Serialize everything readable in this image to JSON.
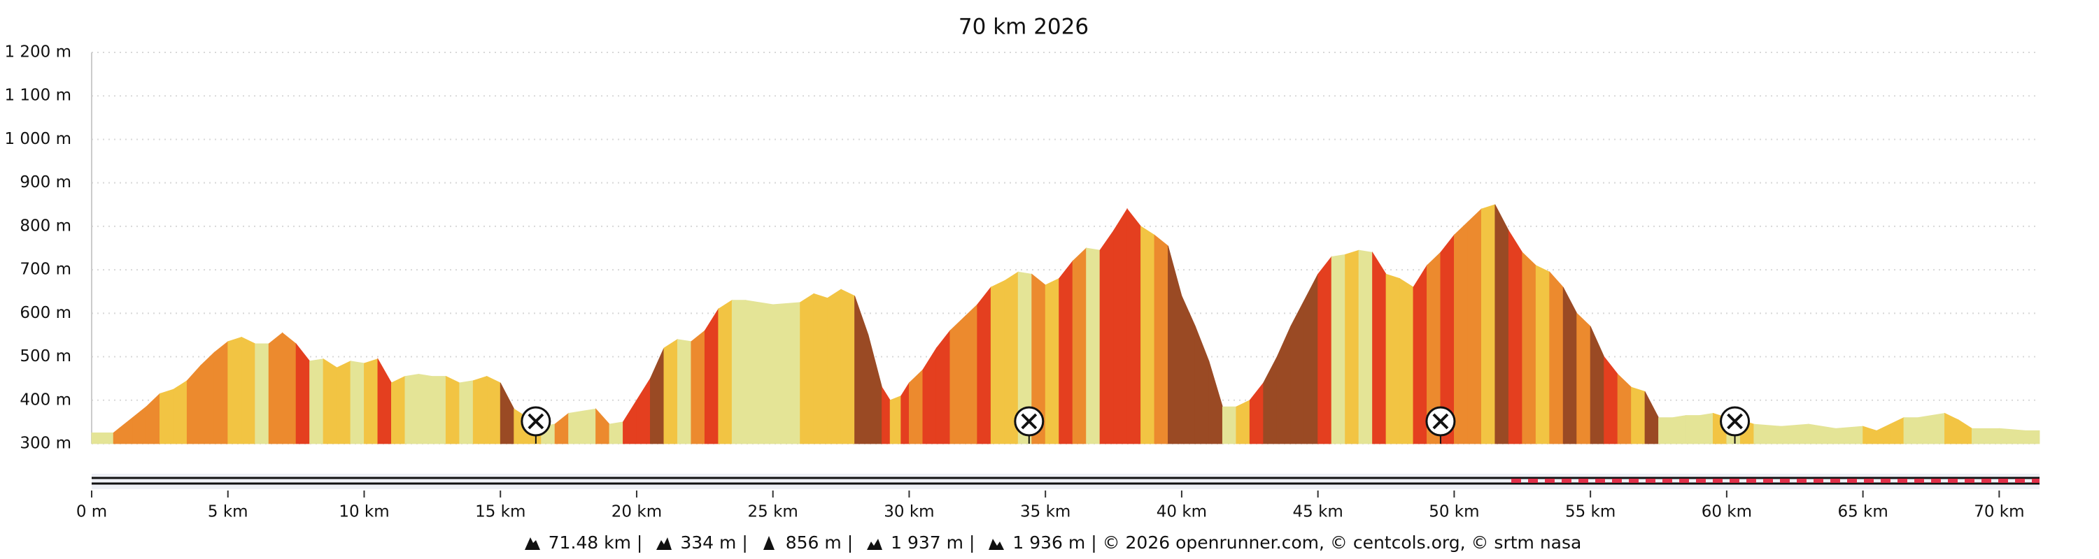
{
  "chart_data": {
    "type": "elevation",
    "title": "70 km 2026",
    "x": [
      0,
      0.8,
      1.0,
      1.5,
      2.0,
      2.5,
      3.0,
      3.5,
      4.0,
      4.5,
      5.0,
      5.5,
      6.0,
      6.5,
      7.0,
      7.5,
      8.0,
      8.5,
      9.0,
      9.5,
      10.0,
      10.5,
      11.0,
      11.5,
      12.0,
      12.5,
      13.0,
      13.5,
      14.0,
      14.5,
      15.0,
      15.5,
      16.0,
      16.5,
      17.0,
      17.5,
      18.0,
      18.5,
      19.0,
      19.5,
      20.0,
      20.5,
      21.0,
      21.5,
      22.0,
      22.5,
      23.0,
      23.5,
      24.0,
      25.0,
      26.0,
      26.5,
      27.0,
      27.5,
      28.0,
      28.5,
      29.0,
      29.3,
      29.7,
      30.0,
      30.5,
      31.0,
      31.5,
      32.0,
      32.5,
      33.0,
      33.5,
      34.0,
      34.5,
      35.0,
      35.5,
      36.0,
      36.5,
      37.0,
      37.5,
      38.0,
      38.5,
      39.0,
      39.5,
      40.0,
      40.5,
      41.0,
      41.5,
      42.0,
      42.5,
      43.0,
      43.5,
      44.0,
      44.5,
      45.0,
      45.5,
      46.0,
      46.5,
      47.0,
      47.5,
      48.0,
      48.5,
      49.0,
      49.5,
      50.0,
      50.5,
      51.0,
      51.5,
      52.0,
      52.5,
      53.0,
      53.5,
      54.0,
      54.5,
      55.0,
      55.5,
      56.0,
      56.5,
      57.0,
      57.5,
      58.0,
      58.5,
      59.0,
      59.5,
      60.0,
      60.5,
      61.0,
      62.0,
      63.0,
      64.0,
      65.0,
      65.5,
      66.0,
      66.5,
      67.0,
      68.0,
      68.5,
      69.0,
      70.0,
      71.0,
      71.48
    ],
    "values": [
      325,
      325,
      335,
      360,
      385,
      415,
      425,
      445,
      480,
      510,
      535,
      545,
      530,
      530,
      555,
      530,
      490,
      495,
      475,
      490,
      485,
      495,
      440,
      455,
      460,
      455,
      455,
      440,
      445,
      455,
      440,
      380,
      360,
      340,
      345,
      370,
      375,
      380,
      345,
      350,
      400,
      450,
      520,
      540,
      535,
      560,
      610,
      630,
      630,
      620,
      625,
      645,
      635,
      655,
      640,
      550,
      430,
      400,
      410,
      440,
      470,
      520,
      560,
      590,
      620,
      660,
      675,
      695,
      690,
      665,
      680,
      720,
      750,
      745,
      790,
      840,
      800,
      780,
      755,
      640,
      570,
      490,
      385,
      385,
      400,
      440,
      500,
      570,
      630,
      690,
      730,
      735,
      745,
      740,
      690,
      680,
      660,
      710,
      740,
      780,
      810,
      840,
      850,
      790,
      740,
      710,
      695,
      660,
      600,
      570,
      500,
      460,
      430,
      420,
      360,
      360,
      365,
      365,
      370,
      360,
      355,
      345,
      340,
      345,
      335,
      340,
      330,
      345,
      360,
      360,
      370,
      355,
      335,
      335,
      330,
      330
    ],
    "slope_colors": [
      "#e4e496",
      "#f2c443",
      "#ec8a2e",
      "#e43f1f",
      "#9a4a24"
    ],
    "xlim": [
      0,
      71.48
    ],
    "ylim": [
      300,
      1200
    ],
    "yticks": [
      {
        "value": 300,
        "label": "300 m"
      },
      {
        "value": 400,
        "label": "400 m"
      },
      {
        "value": 500,
        "label": "500 m"
      },
      {
        "value": 600,
        "label": "600 m"
      },
      {
        "value": 700,
        "label": "700 m"
      },
      {
        "value": 800,
        "label": "800 m"
      },
      {
        "value": 900,
        "label": "900 m"
      },
      {
        "value": 1000,
        "label": "1 000 m"
      },
      {
        "value": 1100,
        "label": "1 100 m"
      },
      {
        "value": 1200,
        "label": "1 200 m"
      }
    ],
    "xticks": [
      {
        "value": 0,
        "label": "0 m"
      },
      {
        "value": 5,
        "label": "5 km"
      },
      {
        "value": 10,
        "label": "10 km"
      },
      {
        "value": 15,
        "label": "15 km"
      },
      {
        "value": 20,
        "label": "20 km"
      },
      {
        "value": 25,
        "label": "25 km"
      },
      {
        "value": 30,
        "label": "30 km"
      },
      {
        "value": 35,
        "label": "35 km"
      },
      {
        "value": 40,
        "label": "40 km"
      },
      {
        "value": 45,
        "label": "45 km"
      },
      {
        "value": 50,
        "label": "50 km"
      },
      {
        "value": 55,
        "label": "55 km"
      },
      {
        "value": 60,
        "label": "60 km"
      },
      {
        "value": 65,
        "label": "65 km"
      },
      {
        "value": 70,
        "label": "70 km"
      }
    ],
    "markers": [
      16.3,
      34.4,
      49.5,
      60.3
    ],
    "grid": true,
    "footer": [
      "71.48 km |",
      "334 m |",
      "856 m |",
      "1 937 m |",
      "1 936 m | © 2026 openrunner.com, © centcols.org, © srtm nasa"
    ]
  }
}
